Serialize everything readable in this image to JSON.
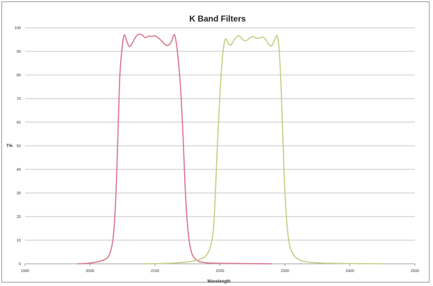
{
  "chart_data": {
    "type": "line",
    "title": "K Band Filters",
    "xlabel": "Wavelength",
    "ylabel": "T%",
    "xlim": [
      1900,
      2500
    ],
    "ylim": [
      0,
      100
    ],
    "x_ticks": [
      1900,
      2000,
      2100,
      2200,
      2300,
      2400,
      2500
    ],
    "y_ticks": [
      0,
      10,
      20,
      30,
      40,
      50,
      60,
      70,
      80,
      90,
      100
    ],
    "grid": true,
    "legend": "none",
    "series": [
      {
        "color": "#d9738a",
        "x": [
          1980,
          2000,
          2020,
          2030,
          2036,
          2040,
          2043,
          2046,
          2050,
          2053,
          2057,
          2061,
          2066,
          2070,
          2075,
          2080,
          2085,
          2090,
          2095,
          2100,
          2105,
          2110,
          2115,
          2120,
          2125,
          2130,
          2134,
          2139,
          2143,
          2146,
          2149,
          2152,
          2155,
          2158,
          2162,
          2166,
          2170,
          2180,
          2200,
          2240,
          2280
        ],
        "y": [
          0,
          0.3,
          1.5,
          4,
          12,
          30,
          55,
          80,
          93,
          97,
          94,
          92,
          94,
          96,
          97.3,
          97,
          95.8,
          96.5,
          96.3,
          96.6,
          95.7,
          94.5,
          93,
          92.5,
          94,
          97,
          91,
          76,
          55,
          35,
          20,
          11,
          6,
          3.5,
          2,
          1.2,
          0.8,
          0.4,
          0.2,
          0.1,
          0
        ]
      },
      {
        "color": "#c7cc80",
        "x": [
          2080,
          2120,
          2150,
          2170,
          2180,
          2186,
          2190,
          2193,
          2196,
          2200,
          2204,
          2208,
          2212,
          2216,
          2220,
          2225,
          2230,
          2235,
          2240,
          2245,
          2250,
          2255,
          2260,
          2265,
          2270,
          2275,
          2280,
          2285,
          2288,
          2291,
          2294,
          2297,
          2300,
          2304,
          2308,
          2314,
          2320,
          2330,
          2350,
          2400,
          2450
        ],
        "y": [
          0,
          0.2,
          0.8,
          2,
          4,
          8,
          15,
          30,
          50,
          72,
          88,
          95,
          94,
          92.5,
          94,
          96,
          96.5,
          95,
          94.5,
          95.5,
          96.2,
          95.8,
          95.5,
          96.1,
          95.2,
          93,
          92.5,
          95.5,
          96.5,
          91,
          75,
          52,
          30,
          14,
          7,
          3.5,
          2,
          1,
          0.4,
          0.1,
          0
        ]
      }
    ]
  }
}
